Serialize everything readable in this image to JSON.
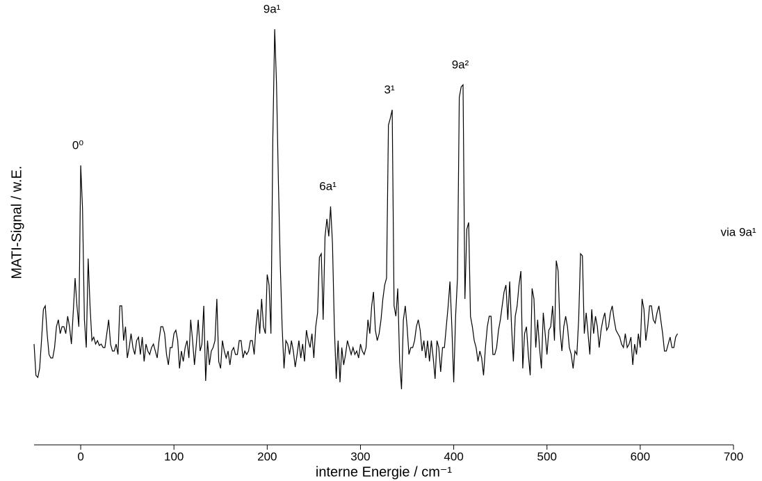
{
  "chart_data": {
    "type": "line",
    "xlabel": "interne Energie / cm⁻¹",
    "ylabel": "MATI-Signal / w.E.",
    "note": "via 9a¹",
    "color": "#000000",
    "xlim": [
      -50,
      700
    ],
    "xticks": [
      0,
      100,
      200,
      300,
      400,
      500,
      600,
      700
    ],
    "ylim": [
      0,
      600
    ],
    "annotations": [
      {
        "text": "0⁰",
        "x": 0
      },
      {
        "text": "9a¹",
        "x": 208
      },
      {
        "text": "6a¹",
        "x": 268
      },
      {
        "text": "3¹",
        "x": 334
      },
      {
        "text": "9a²",
        "x": 410
      }
    ],
    "x": [
      -50,
      -48,
      -46,
      -44,
      -42,
      -40,
      -38,
      -36,
      -34,
      -32,
      -30,
      -28,
      -26,
      -24,
      -22,
      -20,
      -18,
      -16,
      -14,
      -12,
      -10,
      -8,
      -6,
      -4,
      -2,
      0,
      2,
      4,
      6,
      8,
      10,
      12,
      14,
      16,
      18,
      20,
      22,
      24,
      26,
      28,
      30,
      32,
      34,
      36,
      38,
      40,
      42,
      44,
      46,
      48,
      50,
      52,
      54,
      56,
      58,
      60,
      62,
      64,
      66,
      68,
      70,
      72,
      74,
      76,
      78,
      80,
      82,
      84,
      86,
      88,
      90,
      92,
      94,
      96,
      98,
      100,
      102,
      104,
      106,
      108,
      110,
      112,
      114,
      116,
      118,
      120,
      122,
      124,
      126,
      128,
      130,
      132,
      134,
      136,
      138,
      140,
      142,
      144,
      146,
      148,
      150,
      152,
      154,
      156,
      158,
      160,
      162,
      164,
      166,
      168,
      170,
      172,
      174,
      176,
      178,
      180,
      182,
      184,
      186,
      188,
      190,
      192,
      194,
      196,
      198,
      200,
      202,
      204,
      206,
      208,
      210,
      212,
      214,
      216,
      218,
      220,
      222,
      224,
      226,
      228,
      230,
      232,
      234,
      236,
      238,
      240,
      242,
      244,
      246,
      248,
      250,
      252,
      254,
      256,
      258,
      260,
      262,
      264,
      266,
      268,
      270,
      272,
      274,
      276,
      278,
      280,
      282,
      284,
      286,
      288,
      290,
      292,
      294,
      296,
      298,
      300,
      302,
      304,
      306,
      308,
      310,
      312,
      314,
      316,
      318,
      320,
      322,
      324,
      326,
      328,
      330,
      332,
      334,
      336,
      338,
      340,
      342,
      344,
      346,
      348,
      350,
      352,
      354,
      356,
      358,
      360,
      362,
      364,
      366,
      368,
      370,
      372,
      374,
      376,
      378,
      380,
      382,
      384,
      386,
      388,
      390,
      392,
      394,
      396,
      398,
      400,
      402,
      404,
      406,
      408,
      410,
      412,
      414,
      416,
      418,
      420,
      422,
      424,
      426,
      428,
      430,
      432,
      434,
      436,
      438,
      440,
      442,
      444,
      446,
      448,
      450,
      452,
      454,
      456,
      458,
      460,
      462,
      464,
      466,
      468,
      470,
      472,
      474,
      476,
      478,
      480,
      482,
      484,
      486,
      488,
      490,
      492,
      494,
      496,
      498,
      500,
      502,
      504,
      506,
      508,
      510,
      512,
      514,
      516,
      518,
      520,
      522,
      524,
      526,
      528,
      530,
      532,
      534,
      536,
      538,
      540,
      542,
      544,
      546,
      548,
      550,
      552,
      554,
      556,
      558,
      560,
      562,
      564,
      566,
      568,
      570,
      572,
      574,
      576,
      578,
      580,
      582,
      584,
      586,
      588,
      590,
      592,
      594,
      596,
      598,
      600,
      602,
      604,
      606,
      608,
      610,
      612,
      614,
      616,
      618,
      620,
      622,
      624,
      626,
      628,
      630,
      632,
      634,
      636,
      638,
      640
    ],
    "values": [
      145,
      100,
      97,
      110,
      150,
      195,
      200,
      160,
      130,
      125,
      125,
      140,
      170,
      180,
      160,
      170,
      170,
      160,
      185,
      170,
      145,
      190,
      240,
      200,
      170,
      402,
      340,
      180,
      140,
      268,
      200,
      150,
      155,
      145,
      150,
      143,
      145,
      140,
      140,
      160,
      180,
      145,
      135,
      135,
      145,
      130,
      200,
      200,
      150,
      170,
      125,
      140,
      160,
      140,
      130,
      150,
      155,
      130,
      155,
      120,
      145,
      135,
      130,
      140,
      145,
      135,
      125,
      150,
      170,
      170,
      160,
      130,
      115,
      140,
      140,
      160,
      165,
      150,
      110,
      135,
      120,
      140,
      150,
      125,
      180,
      150,
      115,
      145,
      180,
      135,
      145,
      200,
      92,
      150,
      115,
      135,
      140,
      150,
      210,
      120,
      110,
      150,
      135,
      125,
      135,
      115,
      135,
      140,
      130,
      130,
      150,
      150,
      125,
      135,
      130,
      135,
      150,
      150,
      130,
      170,
      195,
      160,
      210,
      170,
      160,
      245,
      230,
      160,
      440,
      598,
      520,
      380,
      260,
      170,
      110,
      150,
      145,
      130,
      150,
      135,
      112,
      130,
      150,
      125,
      145,
      120,
      165,
      150,
      140,
      160,
      125,
      170,
      190,
      270,
      275,
      180,
      300,
      325,
      300,
      343,
      290,
      170,
      95,
      150,
      90,
      140,
      115,
      130,
      150,
      140,
      130,
      140,
      130,
      135,
      125,
      145,
      135,
      130,
      140,
      180,
      160,
      200,
      220,
      165,
      150,
      160,
      180,
      210,
      230,
      240,
      460,
      470,
      482,
      200,
      185,
      225,
      120,
      80,
      180,
      200,
      170,
      130,
      140,
      140,
      150,
      170,
      180,
      165,
      135,
      150,
      125,
      150,
      120,
      150,
      125,
      95,
      150,
      140,
      105,
      140,
      140,
      170,
      200,
      235,
      170,
      90,
      185,
      240,
      500,
      515,
      518,
      210,
      310,
      320,
      185,
      170,
      150,
      140,
      120,
      135,
      125,
      100,
      140,
      170,
      185,
      185,
      130,
      130,
      140,
      165,
      180,
      200,
      220,
      230,
      180,
      235,
      170,
      120,
      185,
      200,
      230,
      250,
      110,
      160,
      170,
      130,
      100,
      225,
      210,
      140,
      180,
      140,
      110,
      190,
      160,
      130,
      165,
      170,
      200,
      150,
      265,
      250,
      165,
      135,
      170,
      185,
      170,
      140,
      130,
      110,
      135,
      130,
      180,
      275,
      272,
      160,
      190,
      160,
      130,
      195,
      160,
      185,
      170,
      140,
      165,
      180,
      190,
      165,
      170,
      190,
      200,
      180,
      165,
      160,
      155,
      145,
      140,
      160,
      140,
      145,
      155,
      115,
      145,
      130,
      160,
      140,
      210,
      195,
      150,
      170,
      200,
      200,
      180,
      175,
      190,
      200,
      180,
      160,
      135,
      135,
      145,
      155,
      140,
      140,
      155,
      160
    ]
  }
}
